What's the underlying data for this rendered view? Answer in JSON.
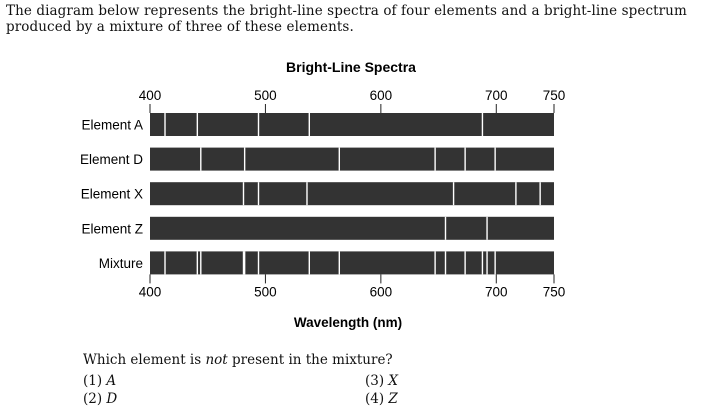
{
  "intro_text": "The diagram below represents the bright-line spectra of four elements and a bright-line spectrum produced by a mixture of three of these elements.",
  "chart_data": {
    "type": "spectra",
    "title": "Bright-Line Spectra",
    "xlabel": "Wavelength (nm)",
    "xlim": [
      400,
      750
    ],
    "top_ticks": [
      {
        "value": 400,
        "label": "400"
      },
      {
        "value": 500,
        "label": "500"
      },
      {
        "value": 600,
        "label": "600"
      },
      {
        "value": 700,
        "label": "700"
      },
      {
        "value": 750,
        "label": "750"
      }
    ],
    "bottom_ticks": [
      {
        "value": 400,
        "label": "400"
      },
      {
        "value": 500,
        "label": "500"
      },
      {
        "value": 600,
        "label": "600"
      },
      {
        "value": 700,
        "label": "700"
      },
      {
        "value": 750,
        "label": "750"
      }
    ],
    "rows": [
      {
        "label": "Element A",
        "lines": [
          413,
          441,
          494,
          538,
          688
        ]
      },
      {
        "label": "Element D",
        "lines": [
          444,
          482,
          564,
          647,
          673,
          699
        ]
      },
      {
        "label": "Element X",
        "lines": [
          481,
          494,
          536,
          663,
          717,
          738
        ]
      },
      {
        "label": "Element Z",
        "lines": [
          656,
          692
        ]
      },
      {
        "label": "Mixture",
        "lines": [
          413,
          441,
          444,
          481,
          482,
          494,
          538,
          564,
          656,
          647,
          673,
          688,
          692,
          699
        ]
      }
    ]
  },
  "question": {
    "prefix": "Which element is ",
    "emphasis": "not",
    "suffix": " present in the mixture?",
    "options": [
      {
        "num": "(1)",
        "letter": "A"
      },
      {
        "num": "(2)",
        "letter": "D"
      },
      {
        "num": "(3)",
        "letter": "X"
      },
      {
        "num": "(4)",
        "letter": "Z"
      }
    ]
  }
}
